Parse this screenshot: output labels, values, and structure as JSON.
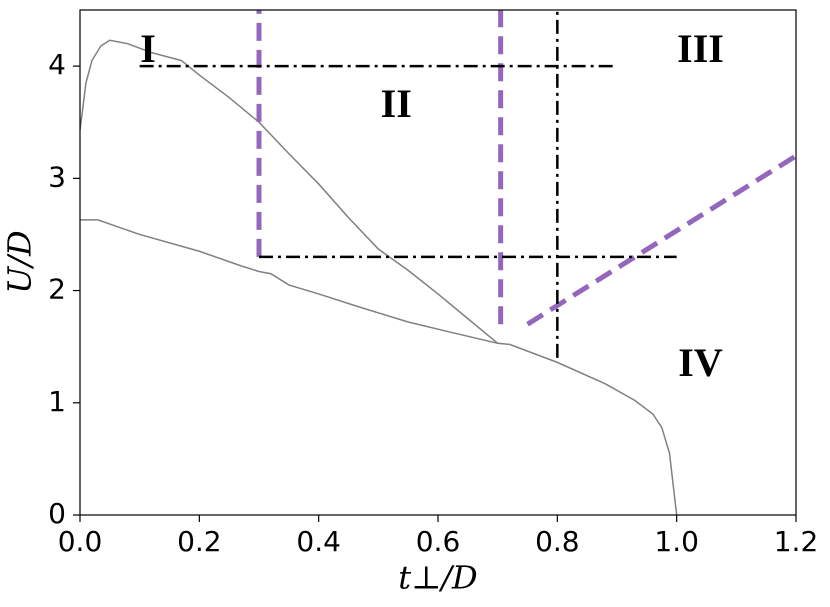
{
  "chart_data": {
    "type": "line",
    "xlabel": "t⊥/D",
    "ylabel": "U/D",
    "xlim": [
      0,
      1.2
    ],
    "ylim": [
      0,
      4.5
    ],
    "xticks": [
      {
        "value": 0,
        "label": "0.0"
      },
      0.2,
      0.4,
      0.6,
      0.8,
      {
        "value": 1,
        "label": "1.0"
      },
      1.2
    ],
    "yticks": [
      0,
      1,
      2,
      3,
      4
    ],
    "series": [
      {
        "color": "#808080",
        "style": "solid",
        "width": 1.5,
        "x": [
          0,
          0.01,
          0.02,
          0.035,
          0.05,
          0.08,
          0.12,
          0.17,
          0.2,
          0.25,
          0.3,
          0.35,
          0.4,
          0.45,
          0.5,
          0.55,
          0.6,
          0.65,
          0.7
        ],
        "values": [
          3.43,
          3.85,
          4.05,
          4.18,
          4.23,
          4.2,
          4.12,
          4.05,
          3.92,
          3.72,
          3.5,
          3.22,
          2.95,
          2.65,
          2.37,
          2.18,
          1.97,
          1.75,
          1.53
        ]
      },
      {
        "color": "#808080",
        "style": "solid",
        "width": 1.5,
        "x": [
          0,
          0.03,
          0.1,
          0.2,
          0.27,
          0.3,
          0.32,
          0.35,
          0.4,
          0.47,
          0.55,
          0.62,
          0.7,
          0.72,
          0.8,
          0.88,
          0.93,
          0.96,
          0.975,
          0.988,
          1.0
        ],
        "values": [
          2.63,
          2.63,
          2.5,
          2.35,
          2.22,
          2.17,
          2.15,
          2.05,
          1.97,
          1.85,
          1.72,
          1.63,
          1.53,
          1.52,
          1.36,
          1.17,
          1.02,
          0.9,
          0.78,
          0.55,
          0
        ]
      },
      {
        "color": "#9467bd",
        "style": "dashed",
        "width": 5,
        "x": [
          0.3,
          0.3
        ],
        "values": [
          2.3,
          4.5
        ]
      },
      {
        "color": "#9467bd",
        "style": "dashed",
        "width": 5,
        "x": [
          0.705,
          0.705
        ],
        "values": [
          1.7,
          4.5
        ]
      },
      {
        "color": "#9467bd",
        "style": "dashed",
        "width": 5,
        "x": [
          0.75,
          1.2
        ],
        "values": [
          1.7,
          3.2
        ]
      },
      {
        "color": "#000000",
        "style": "dashdot",
        "width": 2.5,
        "x": [
          0.1,
          0.9
        ],
        "values": [
          4,
          4
        ]
      },
      {
        "color": "#000000",
        "style": "dashdot",
        "width": 2.5,
        "x": [
          0.3,
          1.0
        ],
        "values": [
          2.3,
          2.3
        ]
      },
      {
        "color": "#000000",
        "style": "dashdot",
        "width": 2.5,
        "x": [
          0.8,
          0.8
        ],
        "values": [
          1.4,
          4.5
        ]
      }
    ],
    "annotations": [
      {
        "text": "I",
        "x": 0.114,
        "y": 4.12
      },
      {
        "text": "II",
        "x": 0.53,
        "y": 3.63
      },
      {
        "text": "III",
        "x": 1.04,
        "y": 4.12
      },
      {
        "text": "IV",
        "x": 1.04,
        "y": 1.32
      }
    ]
  }
}
